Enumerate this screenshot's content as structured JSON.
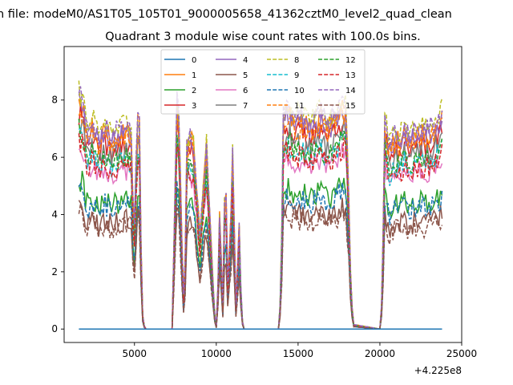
{
  "figure": {
    "suptitle": "n file: modeM0/AS1T05_105T01_9000005658_41362cztM0_level2_quad_clean"
  },
  "chart_data": {
    "type": "line",
    "title": "Quadrant 3 module wise count rates with 100.0s bins.",
    "xlabel": "",
    "ylabel": "",
    "x_offset_label": "+4.225e8",
    "xlim": [
      700,
      25000
    ],
    "ylim": [
      -0.47,
      9.87
    ],
    "x_ticks": [
      5000,
      10000,
      15000,
      20000,
      25000
    ],
    "x_tick_labels": [
      "5000",
      "10000",
      "15000",
      "20000",
      "25000"
    ],
    "y_ticks": [
      0,
      2,
      4,
      6,
      8
    ],
    "y_tick_labels": [
      "0",
      "2",
      "4",
      "6",
      "8"
    ],
    "legend": {
      "position": "top-center",
      "ncols": 4
    },
    "baseline_profile": {
      "x": [
        1600,
        1800,
        2000,
        2200,
        2400,
        2600,
        2800,
        3000,
        3200,
        3400,
        3600,
        3800,
        4000,
        4200,
        4400,
        4600,
        4800,
        4950,
        5050,
        5150,
        5300,
        5450,
        5550,
        5700,
        7300,
        7450,
        7600,
        7750,
        7900,
        8050,
        8200,
        8400,
        8600,
        8800,
        9000,
        9200,
        9400,
        9600,
        9800,
        9950,
        10050,
        10200,
        10400,
        10550,
        10700,
        10850,
        11000,
        11200,
        11400,
        11550,
        11700,
        13800,
        13950,
        14100,
        14400,
        14800,
        15200,
        15600,
        16000,
        16400,
        16800,
        17200,
        17600,
        17900,
        18050,
        18200,
        18350,
        20000,
        20150,
        20300,
        20600,
        20900,
        21200,
        21500,
        21800,
        22100,
        22400,
        22700,
        23000,
        23300,
        23600,
        23800
      ],
      "y": [
        1.0,
        0.98,
        0.88,
        0.85,
        0.9,
        0.86,
        0.82,
        0.84,
        0.87,
        0.85,
        0.83,
        0.85,
        0.84,
        0.86,
        0.85,
        0.88,
        0.84,
        0.4,
        0.5,
        0.92,
        0.88,
        0.1,
        0.02,
        0.0,
        0.0,
        0.5,
        0.99,
        0.85,
        0.35,
        0.04,
        0.78,
        0.84,
        0.8,
        0.62,
        0.4,
        0.6,
        0.78,
        0.5,
        0.2,
        0.0,
        0.02,
        0.5,
        0.1,
        0.75,
        0.2,
        0.4,
        0.74,
        0.1,
        0.45,
        0.05,
        0.0,
        0.0,
        0.15,
        0.92,
        0.95,
        0.9,
        0.92,
        0.88,
        0.9,
        0.92,
        0.87,
        0.92,
        0.95,
        0.98,
        0.7,
        0.25,
        0.02,
        0.0,
        0.15,
        0.9,
        0.78,
        0.84,
        0.82,
        0.86,
        0.82,
        0.85,
        0.86,
        0.84,
        0.86,
        0.88,
        0.9,
        0.93
      ]
    },
    "series": [
      {
        "name": "0",
        "color": "#1f77b4",
        "dash": "solid",
        "level": 0.0
      },
      {
        "name": "1",
        "color": "#ff7f0e",
        "dash": "solid",
        "level": 8.0
      },
      {
        "name": "2",
        "color": "#2ca02c",
        "dash": "solid",
        "level": 5.2
      },
      {
        "name": "3",
        "color": "#d62728",
        "dash": "solid",
        "level": 7.5
      },
      {
        "name": "4",
        "color": "#9467bd",
        "dash": "solid",
        "level": 7.9
      },
      {
        "name": "5",
        "color": "#8c564b",
        "dash": "solid",
        "level": 4.4
      },
      {
        "name": "6",
        "color": "#e377c2",
        "dash": "solid",
        "level": 6.4
      },
      {
        "name": "7",
        "color": "#7f7f7f",
        "dash": "solid",
        "level": 7.2
      },
      {
        "name": "8",
        "color": "#bcbd22",
        "dash": "dashed",
        "level": 8.3
      },
      {
        "name": "9",
        "color": "#17becf",
        "dash": "dashed",
        "level": 6.8
      },
      {
        "name": "10",
        "color": "#1f77b4",
        "dash": "dashed",
        "level": 5.0
      },
      {
        "name": "11",
        "color": "#ff7f0e",
        "dash": "dashed",
        "level": 7.7
      },
      {
        "name": "12",
        "color": "#2ca02c",
        "dash": "dashed",
        "level": 6.9
      },
      {
        "name": "13",
        "color": "#d62728",
        "dash": "dashed",
        "level": 6.6
      },
      {
        "name": "14",
        "color": "#9467bd",
        "dash": "dashed",
        "level": 8.2
      },
      {
        "name": "15",
        "color": "#8c564b",
        "dash": "dashed",
        "level": 4.2
      }
    ]
  }
}
